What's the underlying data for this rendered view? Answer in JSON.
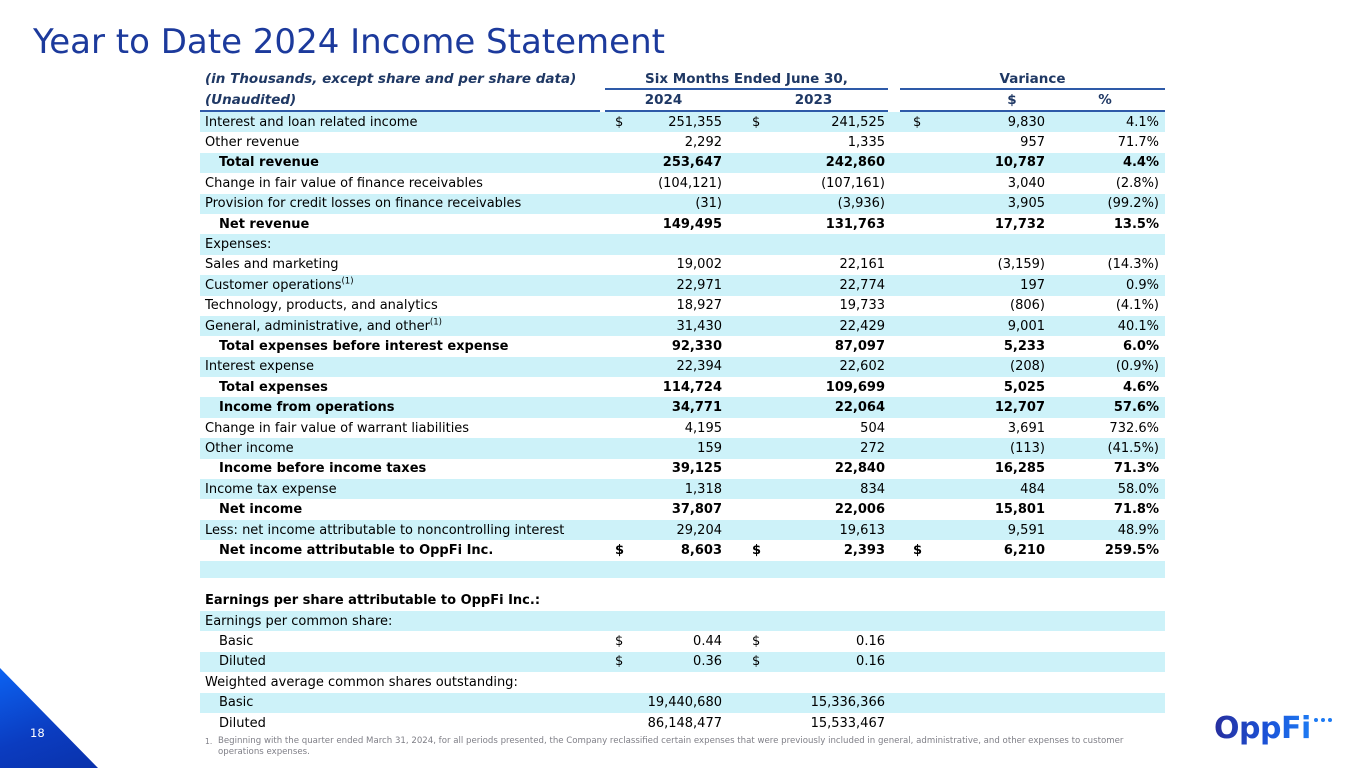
{
  "page": {
    "title": "Year to Date 2024 Income Statement",
    "page_number": "18"
  },
  "colors": {
    "title_blue": "#1c3a9c",
    "header_navy": "#1f3864",
    "stripe_cyan": "#cdf2f9",
    "rule_blue": "#2e5aa8",
    "footnote_gray": "#7f7f87",
    "corner_blue_light": "#0c63f2",
    "corner_blue_dark": "#0a32ab",
    "logo_blue_dark": "#272e9e",
    "logo_blue_light": "#1e7bf3"
  },
  "table": {
    "header": {
      "caption_line1": "(in Thousands, except share and per share data)",
      "caption_line2": "(Unaudited)",
      "group_period": "Six Months Ended June 30,",
      "group_variance": "Variance",
      "col_2024": "2024",
      "col_2023": "2023",
      "col_dollar": "$",
      "col_percent": "%"
    },
    "rows": [
      {
        "label": "Interest and loan related income",
        "shade": true,
        "s1": "$",
        "v1": "251,355",
        "s2": "$",
        "v2": "241,525",
        "s3": "$",
        "v3": "9,830",
        "pct": "4.1%"
      },
      {
        "label": "Other revenue",
        "v1": "2,292",
        "v2": "1,335",
        "v3": "957",
        "pct": "71.7%"
      },
      {
        "label": "Total revenue",
        "bold": true,
        "indent": 1,
        "shade": true,
        "v1": "253,647",
        "v2": "242,860",
        "v3": "10,787",
        "pct": "4.4%"
      },
      {
        "label": "Change in fair value of finance receivables",
        "v1": "(104,121)",
        "v2": "(107,161)",
        "v3": "3,040",
        "pct": "(2.8%)"
      },
      {
        "label": "Provision for credit losses on finance receivables",
        "shade": true,
        "v1": "(31)",
        "v2": "(3,936)",
        "v3": "3,905",
        "pct": "(99.2%)"
      },
      {
        "label": "Net revenue",
        "bold": true,
        "indent": 1,
        "v1": "149,495",
        "v2": "131,763",
        "v3": "17,732",
        "pct": "13.5%"
      },
      {
        "label": "Expenses:",
        "shade": true
      },
      {
        "label": "Sales and marketing",
        "v1": "19,002",
        "v2": "22,161",
        "v3": "(3,159)",
        "pct": "(14.3%)"
      },
      {
        "label": "Customer operations",
        "sup": "(1)",
        "shade": true,
        "v1": "22,971",
        "v2": "22,774",
        "v3": "197",
        "pct": "0.9%"
      },
      {
        "label": "Technology, products, and analytics",
        "v1": "18,927",
        "v2": "19,733",
        "v3": "(806)",
        "pct": "(4.1%)"
      },
      {
        "label": "General, administrative, and other",
        "sup": "(1)",
        "shade": true,
        "v1": "31,430",
        "v2": "22,429",
        "v3": "9,001",
        "pct": "40.1%"
      },
      {
        "label": "Total expenses before interest expense",
        "bold": true,
        "indent": 1,
        "v1": "92,330",
        "v2": "87,097",
        "v3": "5,233",
        "pct": "6.0%"
      },
      {
        "label": "Interest expense",
        "shade": true,
        "v1": "22,394",
        "v2": "22,602",
        "v3": "(208)",
        "pct": "(0.9%)"
      },
      {
        "label": "Total expenses",
        "bold": true,
        "indent": 1,
        "v1": "114,724",
        "v2": "109,699",
        "v3": "5,025",
        "pct": "4.6%"
      },
      {
        "label": "Income from operations",
        "bold": true,
        "indent": 1,
        "shade": true,
        "v1": "34,771",
        "v2": "22,064",
        "v3": "12,707",
        "pct": "57.6%"
      },
      {
        "label": "Change in fair value of warrant liabilities",
        "v1": "4,195",
        "v2": "504",
        "v3": "3,691",
        "pct": "732.6%"
      },
      {
        "label": "Other income",
        "shade": true,
        "v1": "159",
        "v2": "272",
        "v3": "(113)",
        "pct": "(41.5%)"
      },
      {
        "label": "Income before income taxes",
        "bold": true,
        "indent": 1,
        "v1": "39,125",
        "v2": "22,840",
        "v3": "16,285",
        "pct": "71.3%"
      },
      {
        "label": "Income tax expense",
        "shade": true,
        "v1": "1,318",
        "v2": "834",
        "v3": "484",
        "pct": "58.0%"
      },
      {
        "label": "Net income",
        "bold": true,
        "indent": 1,
        "v1": "37,807",
        "v2": "22,006",
        "v3": "15,801",
        "pct": "71.8%"
      },
      {
        "label": "Less: net income attributable to noncontrolling interest",
        "shade": true,
        "v1": "29,204",
        "v2": "19,613",
        "v3": "9,591",
        "pct": "48.9%"
      },
      {
        "label": "Net income attributable to OppFi Inc.",
        "bold": true,
        "indent": 1,
        "s1": "$",
        "v1": "8,603",
        "s2": "$",
        "v2": "2,393",
        "s3": "$",
        "v3": "6,210",
        "pct": "259.5%"
      },
      {
        "label": "",
        "shade": true,
        "h": 17
      },
      {
        "label": "",
        "h": 13
      },
      {
        "label": "Earnings per share attributable to OppFi Inc.:",
        "bold": true
      },
      {
        "label": "Earnings per common share:",
        "shade": true
      },
      {
        "label": "Basic",
        "indent": 1,
        "s1": "$",
        "v1": "0.44",
        "s2": "$",
        "v2": "0.16"
      },
      {
        "label": "Diluted",
        "indent": 1,
        "shade": true,
        "s1": "$",
        "v1": "0.36",
        "s2": "$",
        "v2": "0.16"
      },
      {
        "label": "Weighted average common shares outstanding:"
      },
      {
        "label": "Basic",
        "indent": 1,
        "shade": true,
        "v1": "19,440,680",
        "v2": "15,336,366"
      },
      {
        "label": "Diluted",
        "indent": 1,
        "v1": "86,148,477",
        "v2": "15,533,467"
      }
    ]
  },
  "footnote": {
    "marker": "1.",
    "text": "Beginning with the quarter ended March 31, 2024, for all periods presented, the Company reclassified certain expenses that were previously included in general, administrative, and other expenses to customer operations expenses."
  },
  "logo": {
    "text": "OppFi"
  }
}
